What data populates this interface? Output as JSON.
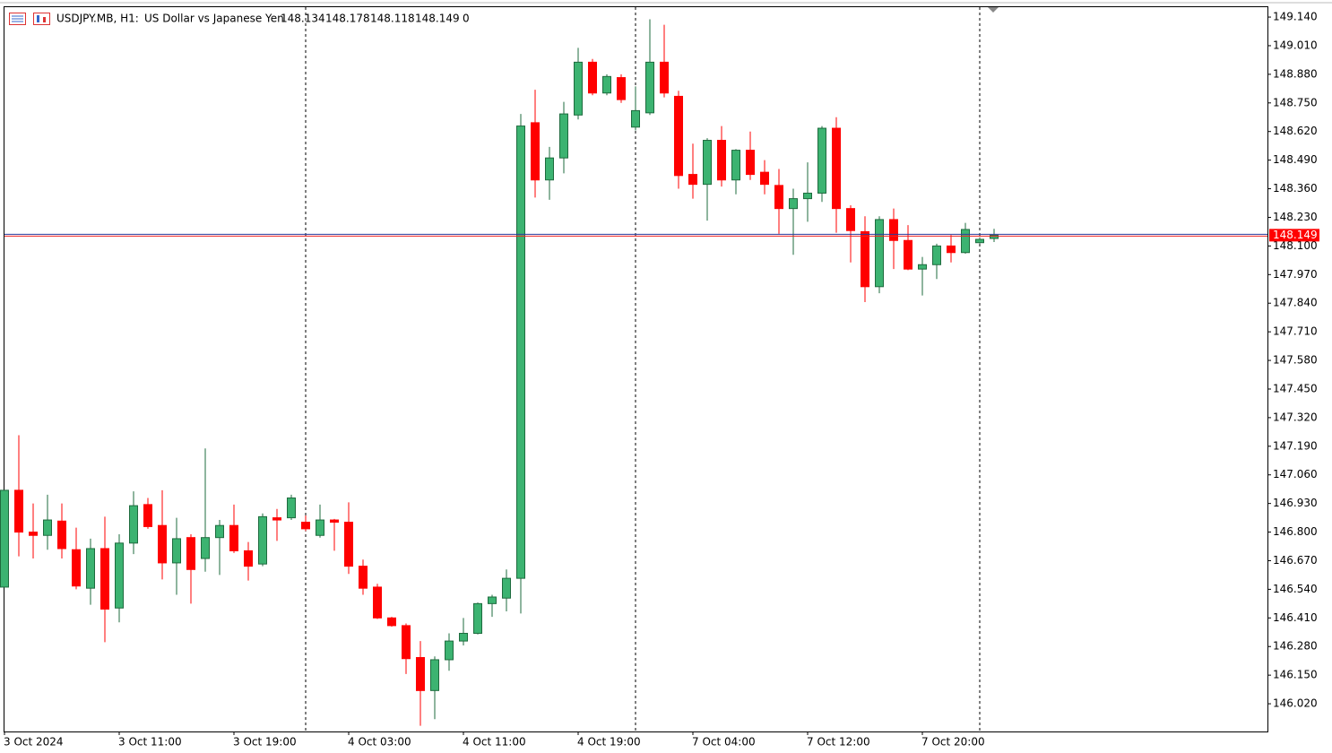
{
  "chart_data": {
    "type": "candlestick",
    "symbol": "USDJPY.MB, H1:",
    "description": "US Dollar vs Japanese Yen",
    "spread": 0,
    "up_color": "#3cb371",
    "down_color": "#ff0000",
    "categories": [
      "3 Oct 2024",
      null,
      null,
      null,
      null,
      null,
      null,
      null,
      "3 Oct 11:00",
      null,
      null,
      null,
      null,
      null,
      null,
      null,
      "3 Oct 19:00",
      null,
      null,
      null,
      null,
      null,
      null,
      null,
      "4 Oct 03:00",
      null,
      null,
      null,
      null,
      null,
      null,
      null,
      "4 Oct 11:00",
      null,
      null,
      null,
      null,
      null,
      null,
      null,
      "4 Oct 19:00",
      null,
      null,
      null,
      null,
      null,
      null,
      null,
      "7 Oct 04:00",
      null,
      null,
      null,
      null,
      null,
      null,
      null,
      "7 Oct 12:00",
      null,
      null,
      null,
      null,
      null,
      null,
      null,
      "7 Oct 20:00",
      null,
      null,
      null,
      null,
      null
    ],
    "open": [
      146.55,
      146.99,
      146.8,
      146.785,
      146.85,
      146.72,
      146.545,
      146.725,
      146.455,
      146.75,
      146.925,
      146.83,
      146.66,
      146.775,
      146.68,
      146.775,
      146.83,
      146.715,
      146.655,
      146.865,
      146.865,
      146.845,
      146.785,
      146.855,
      146.845,
      146.645,
      146.55,
      146.41,
      146.375,
      146.23,
      146.08,
      146.22,
      146.305,
      146.34,
      146.475,
      146.5,
      146.59,
      148.66,
      148.4,
      148.5,
      148.695,
      148.935,
      148.795,
      148.865,
      148.64,
      148.705,
      148.935,
      148.78,
      148.425,
      148.38,
      148.58,
      148.4,
      148.535,
      148.435,
      148.375,
      148.27,
      148.315,
      148.34,
      148.635,
      148.27,
      148.165,
      147.915,
      148.22,
      148.125,
      147.995,
      148.015,
      148.1,
      148.07,
      148.115,
      148.134
    ],
    "high": [
      146.99,
      147.24,
      146.93,
      146.97,
      146.93,
      146.82,
      146.77,
      146.87,
      146.79,
      146.985,
      146.955,
      146.99,
      146.865,
      146.79,
      147.18,
      146.855,
      146.925,
      146.755,
      146.885,
      146.905,
      146.97,
      146.875,
      146.925,
      146.86,
      146.935,
      146.675,
      146.565,
      146.415,
      146.385,
      146.305,
      146.235,
      146.34,
      146.41,
      146.48,
      146.515,
      146.63,
      148.7,
      148.81,
      148.55,
      148.755,
      149.0,
      148.95,
      148.88,
      148.88,
      148.825,
      149.13,
      149.105,
      148.805,
      148.565,
      148.59,
      148.645,
      148.54,
      148.62,
      148.49,
      148.45,
      148.36,
      148.48,
      148.645,
      148.685,
      148.285,
      148.235,
      148.235,
      148.27,
      148.195,
      148.05,
      148.11,
      148.15,
      148.205,
      148.14,
      148.178
    ],
    "low": [
      146.55,
      146.69,
      146.68,
      146.72,
      146.68,
      146.54,
      146.47,
      146.3,
      146.39,
      146.7,
      146.815,
      146.585,
      146.515,
      146.475,
      146.62,
      146.605,
      146.705,
      146.58,
      146.645,
      146.76,
      146.855,
      146.805,
      146.775,
      146.715,
      146.61,
      146.515,
      146.405,
      146.37,
      146.155,
      145.92,
      145.95,
      146.17,
      146.285,
      146.335,
      146.415,
      146.44,
      146.43,
      148.32,
      148.31,
      148.43,
      148.675,
      148.785,
      148.785,
      148.75,
      148.625,
      148.695,
      148.775,
      148.36,
      148.315,
      148.215,
      148.37,
      148.335,
      148.4,
      148.335,
      148.155,
      148.06,
      148.21,
      148.3,
      148.16,
      148.025,
      147.845,
      147.885,
      147.995,
      147.99,
      147.875,
      147.95,
      148.025,
      148.065,
      148.11,
      148.118
    ],
    "close": [
      146.99,
      146.8,
      146.785,
      146.855,
      146.725,
      146.555,
      146.725,
      146.45,
      146.75,
      146.92,
      146.825,
      146.66,
      146.77,
      146.63,
      146.775,
      146.83,
      146.715,
      146.645,
      146.87,
      146.855,
      146.955,
      146.815,
      146.855,
      146.845,
      146.645,
      146.545,
      146.41,
      146.375,
      146.225,
      146.08,
      146.22,
      146.305,
      146.34,
      146.475,
      146.505,
      146.59,
      148.645,
      148.4,
      148.5,
      148.7,
      148.935,
      148.795,
      148.87,
      148.765,
      148.715,
      148.935,
      148.795,
      148.42,
      148.38,
      148.58,
      148.4,
      148.535,
      148.425,
      148.38,
      148.27,
      148.315,
      148.34,
      148.635,
      148.27,
      148.17,
      147.915,
      148.22,
      148.125,
      147.995,
      148.015,
      148.1,
      148.07,
      148.175,
      148.13,
      148.149
    ],
    "ylim": [
      145.894,
      149.185
    ],
    "yticks": [
      {
        "value": 149.14,
        "label": "149.140"
      },
      {
        "value": 149.01,
        "label": "149.010"
      },
      {
        "value": 148.88,
        "label": "148.880"
      },
      {
        "value": 148.75,
        "label": "148.750"
      },
      {
        "value": 148.62,
        "label": "148.620"
      },
      {
        "value": 148.49,
        "label": "148.490"
      },
      {
        "value": 148.36,
        "label": "148.360"
      },
      {
        "value": 148.23,
        "label": "148.230"
      },
      {
        "value": 148.1,
        "label": "148.100"
      },
      {
        "value": 147.97,
        "label": "147.970"
      },
      {
        "value": 147.84,
        "label": "147.840"
      },
      {
        "value": 147.71,
        "label": "147.710"
      },
      {
        "value": 147.58,
        "label": "147.580"
      },
      {
        "value": 147.45,
        "label": "147.450"
      },
      {
        "value": 147.32,
        "label": "147.320"
      },
      {
        "value": 147.19,
        "label": "147.190"
      },
      {
        "value": 147.06,
        "label": "147.060"
      },
      {
        "value": 146.93,
        "label": "146.930"
      },
      {
        "value": 146.8,
        "label": "146.800"
      },
      {
        "value": 146.67,
        "label": "146.670"
      },
      {
        "value": 146.54,
        "label": "146.540"
      },
      {
        "value": 146.41,
        "label": "146.410"
      },
      {
        "value": 146.28,
        "label": "146.280"
      },
      {
        "value": 146.15,
        "label": "146.150"
      },
      {
        "value": 146.02,
        "label": "146.020"
      }
    ]
  }
}
